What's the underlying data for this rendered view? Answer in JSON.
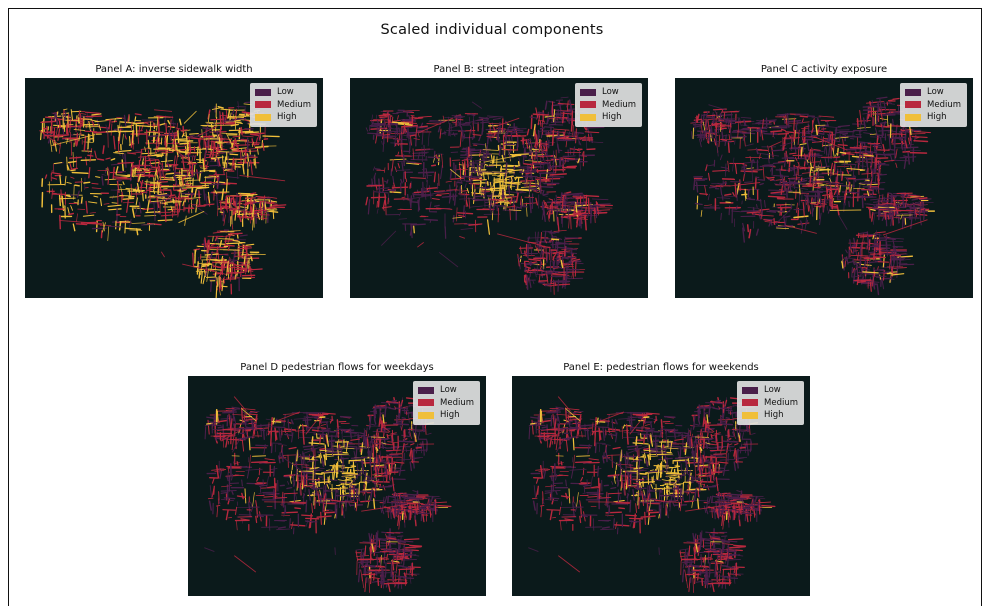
{
  "figure": {
    "title": "Scaled individual components"
  },
  "legend": {
    "items": [
      {
        "label": "Low",
        "color": "#4a1f4a"
      },
      {
        "label": "Medium",
        "color": "#b8283e"
      },
      {
        "label": "High",
        "color": "#f0bf3a"
      }
    ]
  },
  "colors": {
    "map_background": "#0b1a1b",
    "low": "#4a1f4a",
    "medium": "#b8283e",
    "high": "#f0bf3a"
  },
  "panels": [
    {
      "id": "a",
      "title": "Panel A: inverse sidewalk width",
      "dominant": "high"
    },
    {
      "id": "b",
      "title": "Panel B: street integration",
      "dominant": "center-high"
    },
    {
      "id": "c",
      "title": "Panel C  activity exposure",
      "dominant": "low"
    },
    {
      "id": "d",
      "title": "Panel D  pedestrian flows for weekdays",
      "dominant": "center-high"
    },
    {
      "id": "e",
      "title": "Panel E: pedestrian flows for weekends",
      "dominant": "center-high"
    }
  ]
}
